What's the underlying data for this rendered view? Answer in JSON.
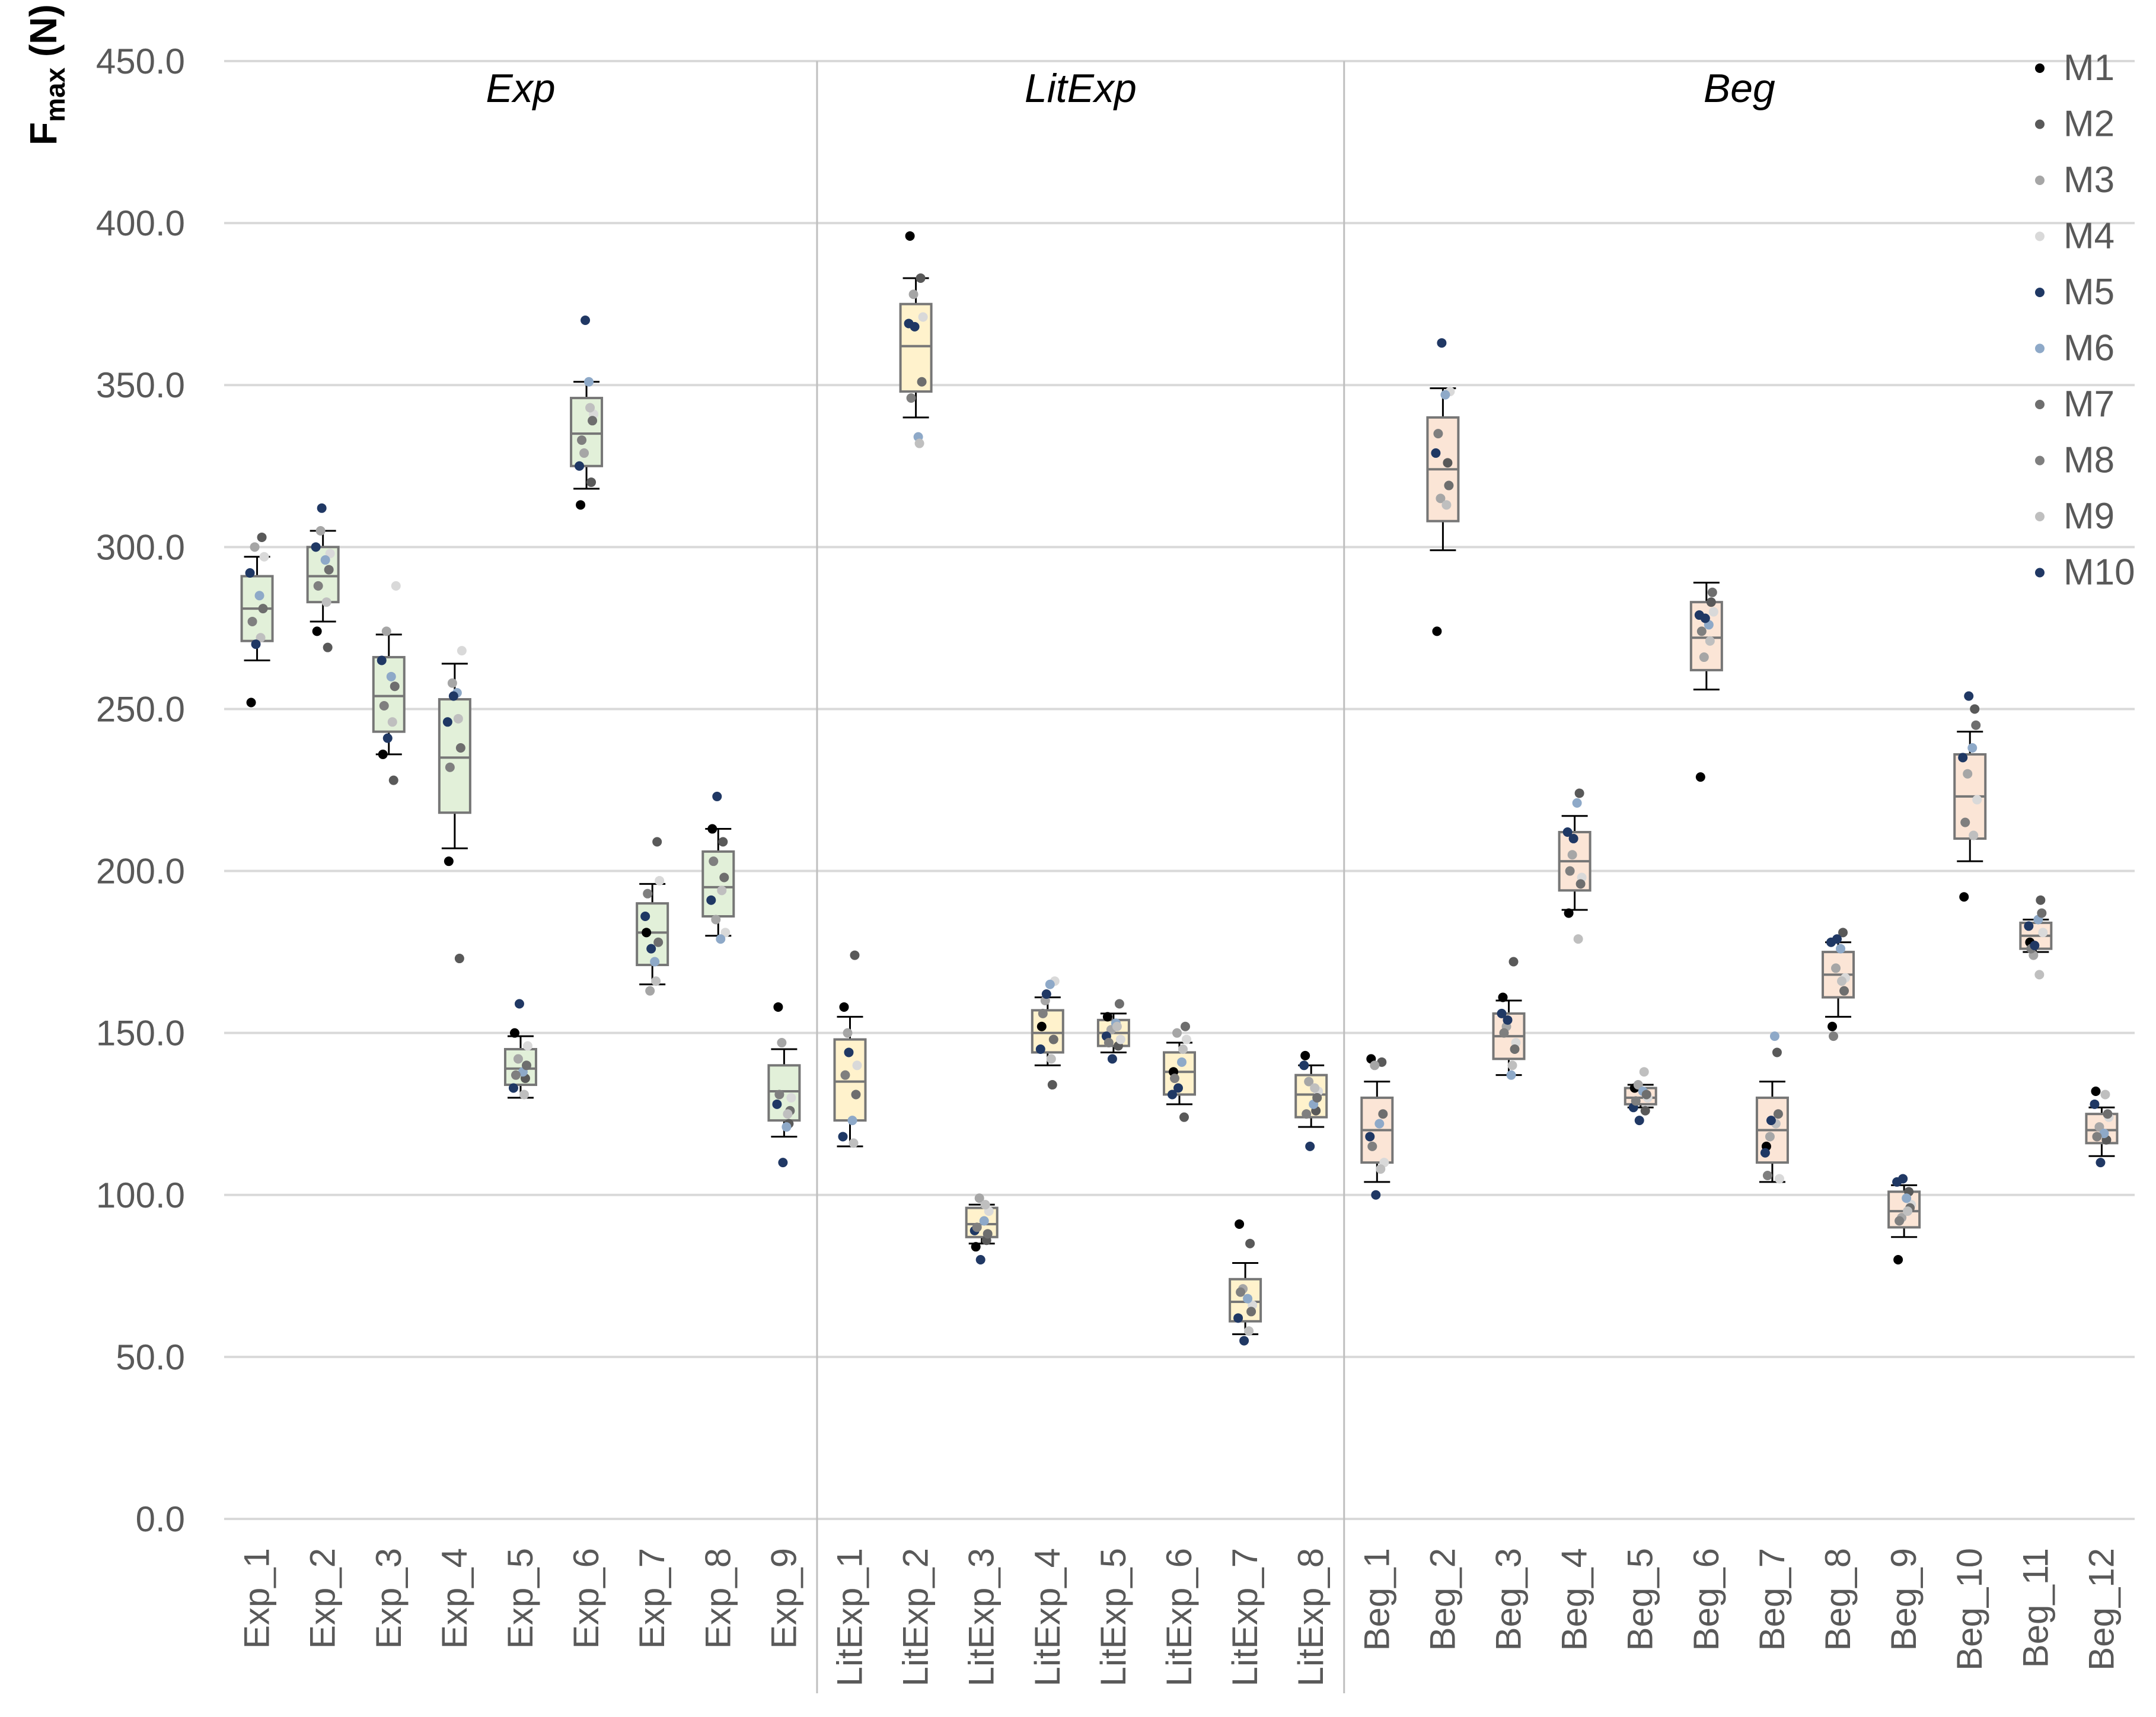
{
  "chart_data": {
    "type": "box",
    "ylabel": "F",
    "ylabel_subscript": "max",
    "ylabel_unit": " (N)",
    "ylim": [
      0,
      450
    ],
    "yticks": [
      "0.0",
      "50.0",
      "100.0",
      "150.0",
      "200.0",
      "250.0",
      "300.0",
      "350.0",
      "400.0",
      "450.0"
    ],
    "ytick_values": [
      0,
      50,
      100,
      150,
      200,
      250,
      300,
      350,
      400,
      450
    ],
    "grid": true,
    "legend_position": "top-right",
    "legend": [
      {
        "name": "M1",
        "color": "#000000"
      },
      {
        "name": "M2",
        "color": "#595959"
      },
      {
        "name": "M3",
        "color": "#A6A6A6"
      },
      {
        "name": "M4",
        "color": "#D9D9D9"
      },
      {
        "name": "M5",
        "color": "#1F3864"
      },
      {
        "name": "M6",
        "color": "#8EA9C8"
      },
      {
        "name": "M7",
        "color": "#6E6E6E"
      },
      {
        "name": "M8",
        "color": "#7F7F7F"
      },
      {
        "name": "M9",
        "color": "#BFBFBF"
      },
      {
        "name": "M10",
        "color": "#203864"
      }
    ],
    "groups": [
      {
        "name": "Exp",
        "fill": "#E2F0D9",
        "categories": [
          {
            "label": "Exp_1",
            "min": 265,
            "q1": 271,
            "median": 281,
            "q3": 291,
            "max": 297,
            "points": [
              252,
              303,
              300,
              297,
              292,
              285,
              281,
              277,
              272,
              270
            ]
          },
          {
            "label": "Exp_2",
            "min": 277,
            "q1": 283,
            "median": 291,
            "q3": 300,
            "max": 305,
            "points": [
              274,
              269,
              305,
              298,
              300,
              296,
              293,
              288,
              283,
              312
            ]
          },
          {
            "label": "Exp_3",
            "min": 236,
            "q1": 243,
            "median": 254,
            "q3": 266,
            "max": 273,
            "points": [
              236,
              228,
              274,
              288,
              265,
              260,
              257,
              251,
              246,
              241
            ]
          },
          {
            "label": "Exp_4",
            "min": 207,
            "q1": 218,
            "median": 235,
            "q3": 253,
            "max": 264,
            "points": [
              203,
              173,
              258,
              268,
              246,
              255,
              238,
              232,
              247,
              254
            ]
          },
          {
            "label": "Exp_5",
            "min": 130,
            "q1": 134,
            "median": 139,
            "q3": 145,
            "max": 149,
            "points": [
              150,
              136,
              142,
              146,
              133,
              138,
              140,
              137,
              131,
              159
            ]
          },
          {
            "label": "Exp_6",
            "min": 318,
            "q1": 325,
            "median": 335,
            "q3": 346,
            "max": 351,
            "points": [
              313,
              320,
              329,
              341,
              325,
              351,
              339,
              333,
              343,
              370
            ]
          },
          {
            "label": "Exp_7",
            "min": 165,
            "q1": 171,
            "median": 181,
            "q3": 190,
            "max": 196,
            "points": [
              181,
              209,
              163,
              197,
              186,
              172,
              178,
              193,
              166,
              176
            ]
          },
          {
            "label": "Exp_8",
            "min": 180,
            "q1": 186,
            "median": 195,
            "q3": 206,
            "max": 213,
            "points": [
              213,
              209,
              185,
              181,
              191,
              179,
              198,
              203,
              194,
              223
            ]
          },
          {
            "label": "Exp_9",
            "min": 118,
            "q1": 123,
            "median": 132,
            "q3": 140,
            "max": 145,
            "points": [
              158,
              122,
              147,
              130,
              128,
              121,
              126,
              131,
              125,
              110
            ]
          }
        ]
      },
      {
        "name": "LitExp",
        "fill": "#FFF2CC",
        "categories": [
          {
            "label": "LitExp_1",
            "min": 115,
            "q1": 123,
            "median": 135,
            "q3": 148,
            "max": 155,
            "points": [
              158,
              174,
              150,
              140,
              118,
              123,
              131,
              137,
              116,
              144
            ]
          },
          {
            "label": "LitExp_2",
            "min": 340,
            "q1": 348,
            "median": 362,
            "q3": 375,
            "max": 383,
            "points": [
              396,
              383,
              378,
              371,
              369,
              334,
              351,
              346,
              332,
              368
            ]
          },
          {
            "label": "LitExp_3",
            "min": 85,
            "q1": 87,
            "median": 91,
            "q3": 96,
            "max": 97,
            "points": [
              84,
              86,
              99,
              95,
              89,
              92,
              88,
              90,
              97,
              80
            ]
          },
          {
            "label": "LitExp_4",
            "min": 140,
            "q1": 144,
            "median": 150,
            "q3": 157,
            "max": 161,
            "points": [
              152,
              134,
              160,
              166,
              145,
              165,
              148,
              156,
              142,
              162
            ]
          },
          {
            "label": "LitExp_5",
            "min": 144,
            "q1": 146,
            "median": 150,
            "q3": 154,
            "max": 156,
            "points": [
              155,
              146,
              151,
              148,
              149,
              153,
              159,
              147,
              152,
              142
            ]
          },
          {
            "label": "LitExp_6",
            "min": 128,
            "q1": 131,
            "median": 138,
            "q3": 144,
            "max": 147,
            "points": [
              138,
              124,
              150,
              148,
              131,
              141,
              152,
              136,
              145,
              133
            ]
          },
          {
            "label": "LitExp_7",
            "min": 57,
            "q1": 61,
            "median": 67,
            "q3": 74,
            "max": 79,
            "points": [
              91,
              85,
              71,
              66,
              62,
              68,
              64,
              70,
              58,
              55
            ]
          },
          {
            "label": "LitExp_8",
            "min": 121,
            "q1": 124,
            "median": 131,
            "q3": 137,
            "max": 140,
            "points": [
              143,
              126,
              135,
              132,
              140,
              128,
              130,
              125,
              133,
              115
            ]
          }
        ]
      },
      {
        "name": "Beg",
        "fill": "#FBE5D6",
        "categories": [
          {
            "label": "Beg_1",
            "min": 104,
            "q1": 110,
            "median": 120,
            "q3": 130,
            "max": 135,
            "points": [
              142,
              141,
              140,
              110,
              118,
              122,
              125,
              115,
              108,
              100
            ]
          },
          {
            "label": "Beg_2",
            "min": 299,
            "q1": 308,
            "median": 324,
            "q3": 340,
            "max": 349,
            "points": [
              274,
              326,
              315,
              348,
              329,
              347,
              319,
              335,
              313,
              363
            ]
          },
          {
            "label": "Beg_3",
            "min": 137,
            "q1": 142,
            "median": 149,
            "q3": 156,
            "max": 160,
            "points": [
              161,
              172,
              152,
              147,
              156,
              137,
              145,
              150,
              140,
              154
            ]
          },
          {
            "label": "Beg_4",
            "min": 188,
            "q1": 194,
            "median": 203,
            "q3": 212,
            "max": 217,
            "points": [
              187,
              224,
              205,
              198,
              212,
              221,
              196,
              200,
              179,
              210
            ]
          },
          {
            "label": "Beg_5",
            "min": 127,
            "q1": 128,
            "median": 130,
            "q3": 133,
            "max": 134,
            "points": [
              133,
              126,
              134,
              130,
              127,
              132,
              131,
              129,
              138,
              123
            ]
          },
          {
            "label": "Beg_6",
            "min": 256,
            "q1": 262,
            "median": 272,
            "q3": 283,
            "max": 289,
            "points": [
              229,
              283,
              266,
              280,
              279,
              276,
              286,
              274,
              271,
              278
            ]
          },
          {
            "label": "Beg_7",
            "min": 104,
            "q1": 110,
            "median": 120,
            "q3": 130,
            "max": 135,
            "points": [
              115,
              144,
              118,
              105,
              113,
              149,
              125,
              106,
              122,
              123
            ]
          },
          {
            "label": "Beg_8",
            "min": 155,
            "q1": 161,
            "median": 168,
            "q3": 175,
            "max": 178,
            "points": [
              152,
              181,
              170,
              167,
              178,
              176,
              163,
              149,
              166,
              179
            ]
          },
          {
            "label": "Beg_9",
            "min": 87,
            "q1": 90,
            "median": 95,
            "q3": 101,
            "max": 103,
            "points": [
              80,
              101,
              93,
              97,
              104,
              99,
              96,
              92,
              95,
              105
            ]
          },
          {
            "label": "Beg_10",
            "min": 203,
            "q1": 210,
            "median": 223,
            "q3": 236,
            "max": 243,
            "points": [
              192,
              250,
              230,
              222,
              235,
              238,
              245,
              215,
              211,
              254
            ]
          },
          {
            "label": "Beg_11",
            "min": 175,
            "q1": 176,
            "median": 180,
            "q3": 184,
            "max": 185,
            "points": [
              178,
              191,
              174,
              181,
              183,
              185,
              187,
              176,
              168,
              177
            ]
          },
          {
            "label": "Beg_12",
            "min": 112,
            "q1": 116,
            "median": 120,
            "q3": 125,
            "max": 127,
            "points": [
              132,
              117,
              121,
              124,
              128,
              119,
              125,
              118,
              131,
              110
            ]
          }
        ]
      }
    ]
  }
}
